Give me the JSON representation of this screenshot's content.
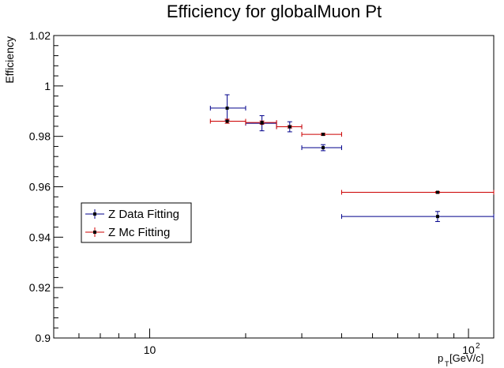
{
  "chart_data": {
    "type": "scatter",
    "title": "Efficiency for globalMuon Pt",
    "xlabel_main": "p",
    "xlabel_sub": "T",
    "xlabel_unit": " [GeV/c]",
    "ylabel": "Efficiency",
    "x_scale": "log",
    "xlim": [
      5,
      120
    ],
    "ylim": [
      0.9,
      1.02
    ],
    "x_tick_labels": [
      {
        "value": 10,
        "label": "10"
      },
      {
        "value": 100,
        "label": "10",
        "sup": "2"
      }
    ],
    "y_tick_labels": [
      {
        "value": 0.9,
        "label": "0.9"
      },
      {
        "value": 0.92,
        "label": "0.92"
      },
      {
        "value": 0.94,
        "label": "0.94"
      },
      {
        "value": 0.96,
        "label": "0.96"
      },
      {
        "value": 0.98,
        "label": "0.98"
      },
      {
        "value": 1.0,
        "label": "1"
      },
      {
        "value": 1.02,
        "label": "1.02"
      }
    ],
    "grid": false,
    "legend_position": "middle-left",
    "series": [
      {
        "name": "Z Data Fitting",
        "color": "#00008b",
        "points": [
          {
            "x": 17.5,
            "xlo": 15.5,
            "xhi": 20,
            "y": 0.9912,
            "ylo": 0.9862,
            "yhi": 0.9965
          },
          {
            "x": 22.5,
            "xlo": 20,
            "xhi": 25,
            "y": 0.9852,
            "ylo": 0.9822,
            "yhi": 0.9882
          },
          {
            "x": 27.5,
            "xlo": 25,
            "xhi": 30,
            "y": 0.9838,
            "ylo": 0.9818,
            "yhi": 0.9858
          },
          {
            "x": 35,
            "xlo": 30,
            "xhi": 40,
            "y": 0.9755,
            "ylo": 0.9743,
            "yhi": 0.9767
          },
          {
            "x": 80,
            "xlo": 40,
            "xhi": 120,
            "y": 0.9482,
            "ylo": 0.9462,
            "yhi": 0.9502
          }
        ]
      },
      {
        "name": "Z Mc Fitting",
        "color": "#cc0000",
        "points": [
          {
            "x": 17.5,
            "xlo": 15.5,
            "xhi": 20,
            "y": 0.986,
            "ylo": 0.9852,
            "yhi": 0.9868
          },
          {
            "x": 22.5,
            "xlo": 20,
            "xhi": 25,
            "y": 0.9855,
            "ylo": 0.9849,
            "yhi": 0.9861
          },
          {
            "x": 27.5,
            "xlo": 25,
            "xhi": 30,
            "y": 0.9838,
            "ylo": 0.9833,
            "yhi": 0.9843
          },
          {
            "x": 35,
            "xlo": 30,
            "xhi": 40,
            "y": 0.9808,
            "ylo": 0.9804,
            "yhi": 0.9812
          },
          {
            "x": 80,
            "xlo": 40,
            "xhi": 120,
            "y": 0.9578,
            "ylo": 0.9575,
            "yhi": 0.9581
          }
        ]
      }
    ]
  }
}
